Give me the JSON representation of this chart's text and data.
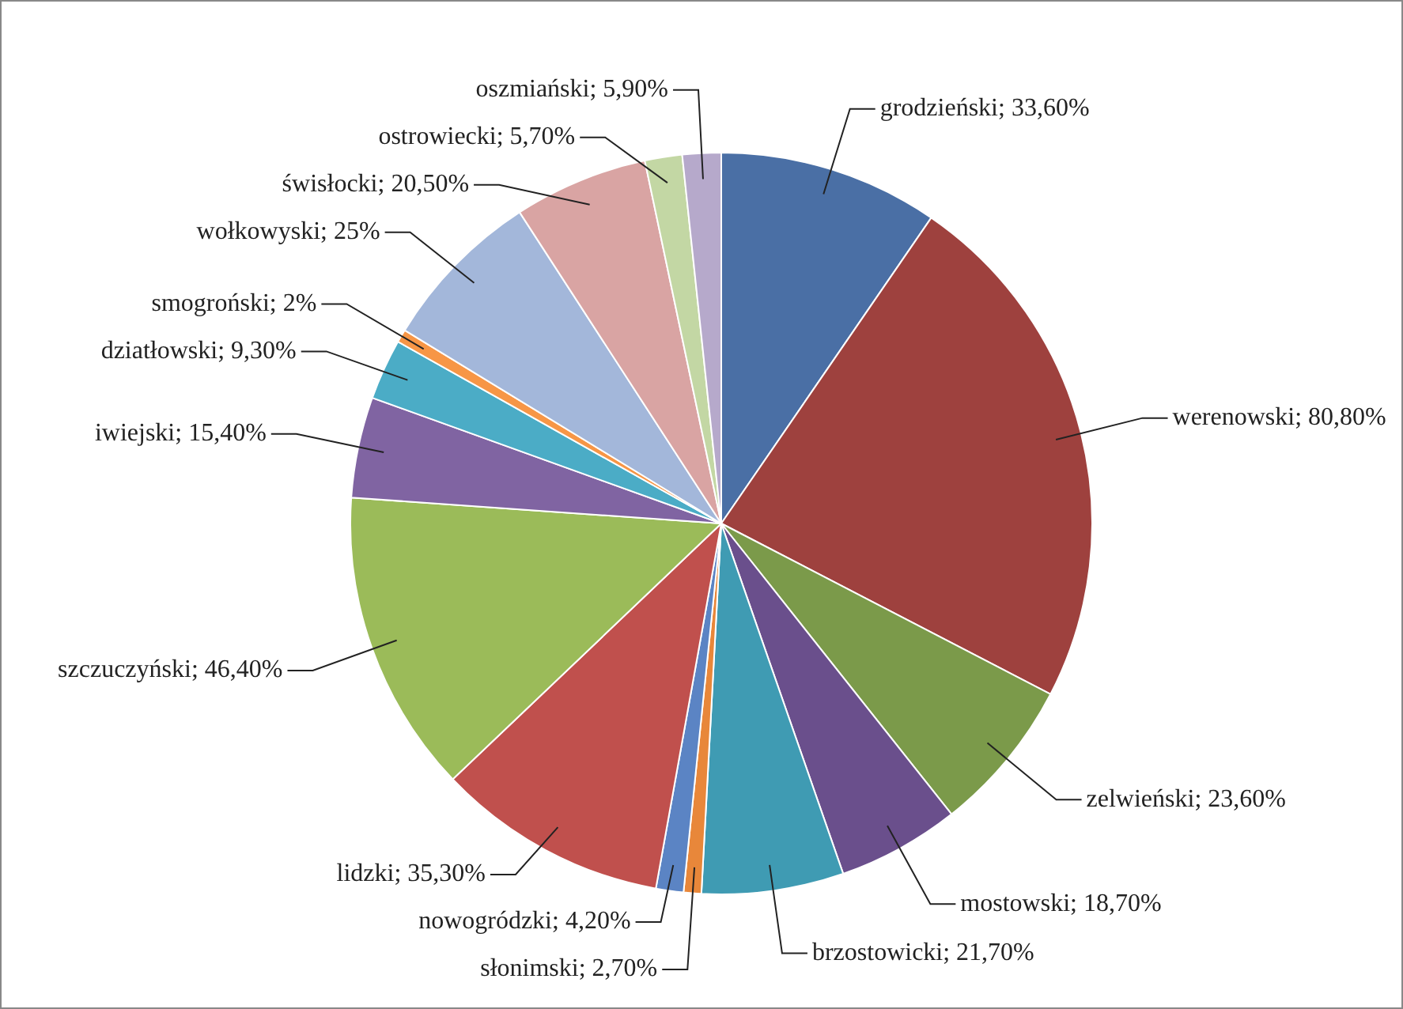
{
  "chart_data": {
    "type": "pie",
    "categories": [
      "grodzieński",
      "werenowski",
      "zelwieński",
      "mostowski",
      "brzostowicki",
      "słonimski",
      "nowogródzki",
      "lidzki",
      "szczuczyński",
      "iwiejski",
      "dziatłowski",
      "smogroński",
      "wołkowyski",
      "świsłocki",
      "ostrowiecki",
      "oszmiański"
    ],
    "values": [
      33.6,
      80.8,
      23.6,
      18.7,
      21.7,
      2.7,
      4.2,
      35.3,
      46.4,
      15.4,
      9.3,
      2,
      25,
      20.5,
      5.7,
      5.9
    ],
    "value_labels": [
      "33,60%",
      "80,80%",
      "23,60%",
      "18,70%",
      "21,70%",
      "2,70%",
      "4,20%",
      "35,30%",
      "46,40%",
      "15,40%",
      "9,30%",
      "2%",
      "25%",
      "20,50%",
      "5,70%",
      "5,90%"
    ],
    "colors": [
      "#4a6fa5",
      "#9e413e",
      "#7b9a4a",
      "#6a4f8c",
      "#3f9bb3",
      "#e8873a",
      "#5b84c4",
      "#c0504d",
      "#9bbb59",
      "#8064a2",
      "#4bacc6",
      "#f79646",
      "#a3b7da",
      "#d9a4a3",
      "#c3d7a4",
      "#b6a9cb"
    ],
    "legend": false
  }
}
